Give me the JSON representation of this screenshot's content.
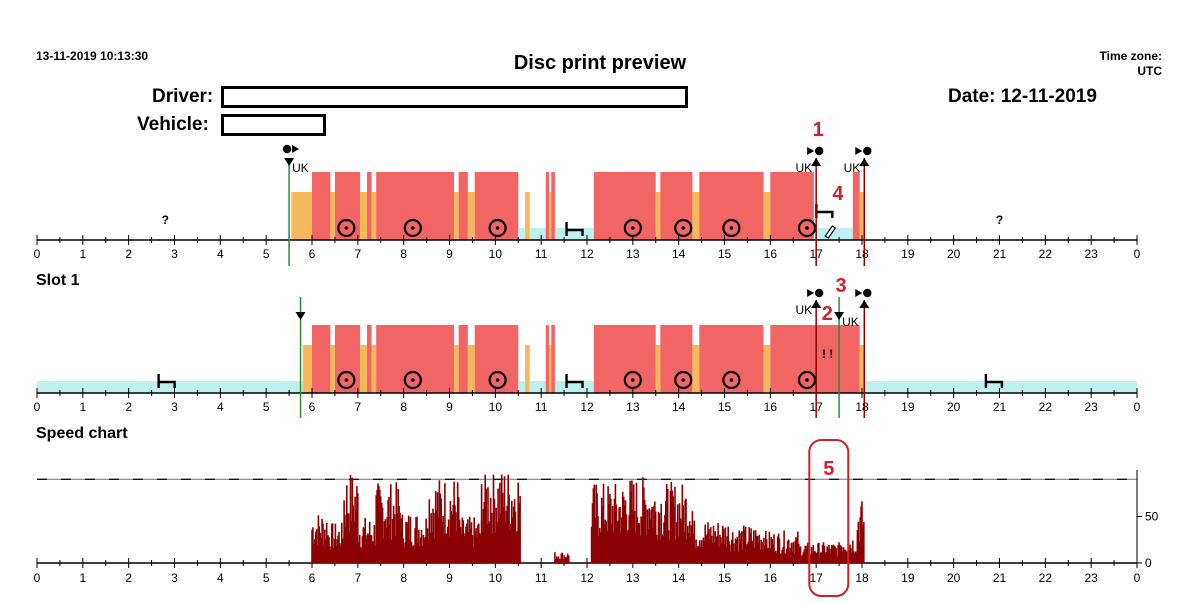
{
  "header": {
    "timestamp": "13-11-2019 10:13:30",
    "title": "Disc print preview",
    "timezone_label": "Time zone:",
    "timezone_value": "UTC",
    "driver_label": "Driver:",
    "vehicle_label": "Vehicle:",
    "date_label": "Date:",
    "date_value": "12-11-2019"
  },
  "sections": {
    "slot1": "Slot 1",
    "speed": "Speed chart"
  },
  "colors": {
    "driving": "#f26565",
    "other_work": "#f5b85a",
    "rest": "#bff0f0",
    "marker_green": "#2e8b2e",
    "marker_dark_red": "#8b0000",
    "speed_fill": "#8b0000",
    "speed_limit_line": "#5b6fb5",
    "annotation": "#d0202a"
  },
  "chart_data": {
    "type": "bar",
    "x_ticks": [
      "0",
      "1",
      "2",
      "3",
      "4",
      "5",
      "6",
      "7",
      "8",
      "9",
      "10",
      "11",
      "12",
      "13",
      "14",
      "15",
      "16",
      "17",
      "18",
      "19",
      "20",
      "21",
      "22",
      "23",
      "0"
    ],
    "country_label": "UK",
    "unknown_mark": "?",
    "warning_mark": "! !",
    "icons": [
      "driving-wheel-icon",
      "bed-rest-icon",
      "manual-entry-pencil-icon",
      "card-insert-icon",
      "card-withdraw-icon"
    ],
    "disc_activities": [
      {
        "type": "other_work",
        "start": 5.55,
        "end": 6.0
      },
      {
        "type": "driving",
        "start": 6.0,
        "end": 6.4
      },
      {
        "type": "other_work",
        "start": 6.4,
        "end": 6.5
      },
      {
        "type": "driving",
        "start": 6.5,
        "end": 7.05
      },
      {
        "type": "other_work",
        "start": 7.05,
        "end": 7.2
      },
      {
        "type": "driving",
        "start": 7.2,
        "end": 7.3
      },
      {
        "type": "other_work",
        "start": 7.3,
        "end": 7.4
      },
      {
        "type": "driving",
        "start": 7.4,
        "end": 9.1
      },
      {
        "type": "other_work",
        "start": 9.1,
        "end": 9.2
      },
      {
        "type": "driving",
        "start": 9.2,
        "end": 9.4
      },
      {
        "type": "other_work",
        "start": 9.4,
        "end": 9.55
      },
      {
        "type": "driving",
        "start": 9.55,
        "end": 10.5
      },
      {
        "type": "rest",
        "start": 10.5,
        "end": 10.65
      },
      {
        "type": "other_work",
        "start": 10.65,
        "end": 10.75
      },
      {
        "type": "rest",
        "start": 10.75,
        "end": 11.1
      },
      {
        "type": "driving",
        "start": 11.1,
        "end": 11.17
      },
      {
        "type": "other_work",
        "start": 11.17,
        "end": 11.22
      },
      {
        "type": "driving",
        "start": 11.22,
        "end": 11.3
      },
      {
        "type": "rest",
        "start": 11.3,
        "end": 12.15
      },
      {
        "type": "driving",
        "start": 12.15,
        "end": 13.5
      },
      {
        "type": "other_work",
        "start": 13.5,
        "end": 13.6
      },
      {
        "type": "driving",
        "start": 13.6,
        "end": 14.3
      },
      {
        "type": "other_work",
        "start": 14.3,
        "end": 14.45
      },
      {
        "type": "driving",
        "start": 14.45,
        "end": 15.85
      },
      {
        "type": "other_work",
        "start": 15.85,
        "end": 16.0
      },
      {
        "type": "driving",
        "start": 16.0,
        "end": 16.95
      },
      {
        "type": "rest",
        "start": 16.95,
        "end": 17.8
      },
      {
        "type": "driving",
        "start": 17.8,
        "end": 17.95
      },
      {
        "type": "other_work",
        "start": 17.95,
        "end": 18.05
      }
    ],
    "disc_rest_tail": [
      {
        "start": 0,
        "end": 0
      }
    ],
    "slot1_activities": [
      {
        "type": "rest",
        "start": 0,
        "end": 5.8
      },
      {
        "type": "other_work",
        "start": 5.8,
        "end": 6.0
      },
      {
        "type": "driving",
        "start": 6.0,
        "end": 6.4
      },
      {
        "type": "other_work",
        "start": 6.4,
        "end": 6.5
      },
      {
        "type": "driving",
        "start": 6.5,
        "end": 7.05
      },
      {
        "type": "other_work",
        "start": 7.05,
        "end": 7.2
      },
      {
        "type": "driving",
        "start": 7.2,
        "end": 7.3
      },
      {
        "type": "other_work",
        "start": 7.3,
        "end": 7.4
      },
      {
        "type": "driving",
        "start": 7.4,
        "end": 9.1
      },
      {
        "type": "other_work",
        "start": 9.1,
        "end": 9.2
      },
      {
        "type": "driving",
        "start": 9.2,
        "end": 9.4
      },
      {
        "type": "other_work",
        "start": 9.4,
        "end": 9.55
      },
      {
        "type": "driving",
        "start": 9.55,
        "end": 10.5
      },
      {
        "type": "rest",
        "start": 10.5,
        "end": 10.65
      },
      {
        "type": "other_work",
        "start": 10.65,
        "end": 10.75
      },
      {
        "type": "rest",
        "start": 10.75,
        "end": 11.1
      },
      {
        "type": "driving",
        "start": 11.1,
        "end": 11.17
      },
      {
        "type": "other_work",
        "start": 11.17,
        "end": 11.22
      },
      {
        "type": "driving",
        "start": 11.22,
        "end": 11.3
      },
      {
        "type": "rest",
        "start": 11.3,
        "end": 12.15
      },
      {
        "type": "driving",
        "start": 12.15,
        "end": 13.5
      },
      {
        "type": "other_work",
        "start": 13.5,
        "end": 13.6
      },
      {
        "type": "driving",
        "start": 13.6,
        "end": 14.3
      },
      {
        "type": "other_work",
        "start": 14.3,
        "end": 14.45
      },
      {
        "type": "driving",
        "start": 14.45,
        "end": 15.85
      },
      {
        "type": "other_work",
        "start": 15.85,
        "end": 16.0
      },
      {
        "type": "driving",
        "start": 16.0,
        "end": 17.95
      },
      {
        "type": "other_work",
        "start": 17.95,
        "end": 18.05
      },
      {
        "type": "rest",
        "start": 18.05,
        "end": 24
      }
    ],
    "disc_wheels": [
      6.75,
      8.2,
      10.05,
      13.0,
      14.1,
      15.15,
      16.8
    ],
    "slot1_wheels": [
      6.75,
      8.2,
      10.05,
      13.0,
      14.1,
      15.15,
      16.8
    ],
    "disc_beds": [
      11.75
    ],
    "slot1_beds": [
      2.85,
      11.75,
      20.9
    ],
    "disc_unknown": [
      2.8,
      21.0
    ],
    "disc_markers": [
      {
        "hour": 5.5,
        "kind": "insert",
        "color": "marker_green",
        "country": "UK"
      },
      {
        "hour": 17.0,
        "kind": "withdraw",
        "color": "marker_dark_red",
        "country": "UK"
      },
      {
        "hour": 18.05,
        "kind": "withdraw",
        "color": "marker_dark_red",
        "country": "UK"
      }
    ],
    "slot1_markers": [
      {
        "hour": 5.75,
        "kind": "insert",
        "color": "marker_green",
        "country": ""
      },
      {
        "hour": 17.0,
        "kind": "withdraw",
        "color": "marker_dark_red",
        "country": "UK"
      },
      {
        "hour": 17.5,
        "kind": "insert",
        "color": "marker_green",
        "country": "UK"
      },
      {
        "hour": 18.05,
        "kind": "withdraw",
        "color": "marker_dark_red",
        "country": ""
      }
    ],
    "speed": {
      "y_ticks": [
        0,
        50
      ],
      "ylim": [
        0,
        100
      ],
      "limit": 90,
      "segments": [
        {
          "start": 6.0,
          "end": 6.35,
          "level": 45
        },
        {
          "start": 6.35,
          "end": 6.7,
          "level": 35
        },
        {
          "start": 6.7,
          "end": 7.0,
          "level": 80
        },
        {
          "start": 7.0,
          "end": 7.4,
          "level": 40
        },
        {
          "start": 7.4,
          "end": 7.95,
          "level": 70
        },
        {
          "start": 7.95,
          "end": 8.5,
          "level": 45
        },
        {
          "start": 8.5,
          "end": 9.2,
          "level": 75
        },
        {
          "start": 9.2,
          "end": 9.7,
          "level": 40
        },
        {
          "start": 9.7,
          "end": 10.55,
          "level": 85
        },
        {
          "start": 11.3,
          "end": 11.6,
          "level": 10
        },
        {
          "start": 12.1,
          "end": 12.8,
          "level": 70
        },
        {
          "start": 12.8,
          "end": 13.4,
          "level": 75
        },
        {
          "start": 13.4,
          "end": 14.3,
          "level": 70
        },
        {
          "start": 14.3,
          "end": 15.1,
          "level": 38
        },
        {
          "start": 15.1,
          "end": 15.9,
          "level": 33
        },
        {
          "start": 15.9,
          "end": 16.6,
          "level": 28
        },
        {
          "start": 16.6,
          "end": 17.5,
          "level": 18
        },
        {
          "start": 17.5,
          "end": 17.9,
          "level": 25
        },
        {
          "start": 17.9,
          "end": 18.05,
          "level": 55
        }
      ]
    },
    "annotations": [
      {
        "label": "1",
        "hour": 17.0,
        "row": "disc"
      },
      {
        "label": "2",
        "hour": 17.2,
        "row": "slot"
      },
      {
        "label": "3",
        "hour": 17.5,
        "row": "slot_top"
      },
      {
        "label": "4",
        "hour": 17.3,
        "row": "disc_mid"
      },
      {
        "label": "5",
        "hour": 17.2,
        "row": "speed"
      }
    ]
  }
}
